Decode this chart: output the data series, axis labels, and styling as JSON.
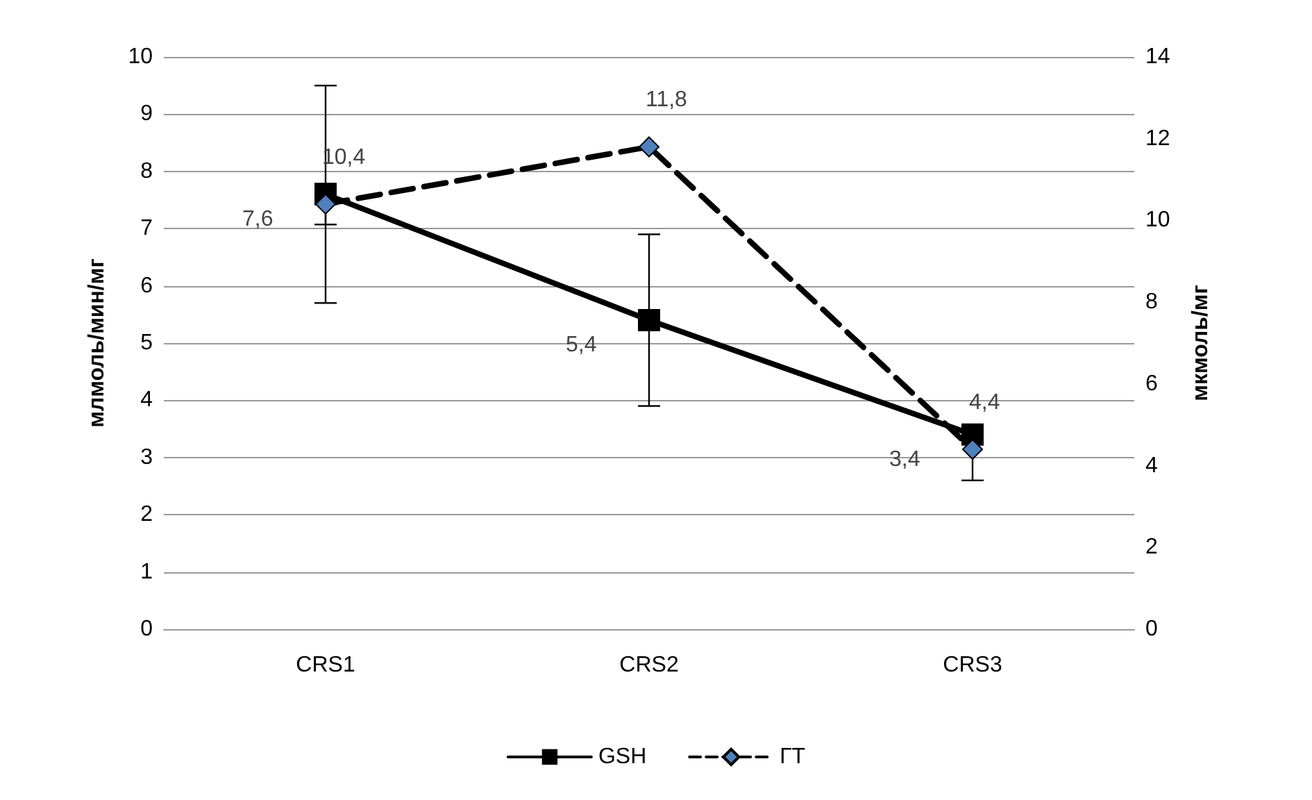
{
  "chart_data": {
    "type": "line",
    "ylabel": "млмоль/мин/мг",
    "y2label": "мкмоль/мг",
    "categories": [
      "CRS1",
      "CRS2",
      "CRS3"
    ],
    "series": [
      {
        "name": "GSH",
        "color": "#000000",
        "values": [
          7.6,
          5.4,
          3.4
        ],
        "value_labels": [
          "7,6",
          "5,4",
          "3,4"
        ],
        "errors": [
          [
            5.7,
            9.5
          ],
          [
            3.9,
            6.9
          ],
          [
            2.6,
            3.4
          ]
        ],
        "marker": "square",
        "line_style": "solid"
      },
      {
        "name": "ГТ",
        "color": "#4f81bd",
        "axis": "y2",
        "values": [
          10.4,
          11.8,
          4.4
        ],
        "value_labels": [
          "10,4",
          "11,8",
          "4,4"
        ],
        "errors": [
          0.5,
          null,
          null
        ],
        "marker": "diamond",
        "line_style": "dashed"
      }
    ],
    "ylim": [
      0,
      10
    ],
    "yticks": [
      0,
      1,
      2,
      3,
      4,
      5,
      6,
      7,
      8,
      9,
      10
    ],
    "y2lim": [
      0,
      14
    ],
    "y2ticks": [
      0,
      2,
      4,
      6,
      8,
      10,
      12,
      14
    ],
    "grid": "y",
    "legend": "bottom"
  }
}
